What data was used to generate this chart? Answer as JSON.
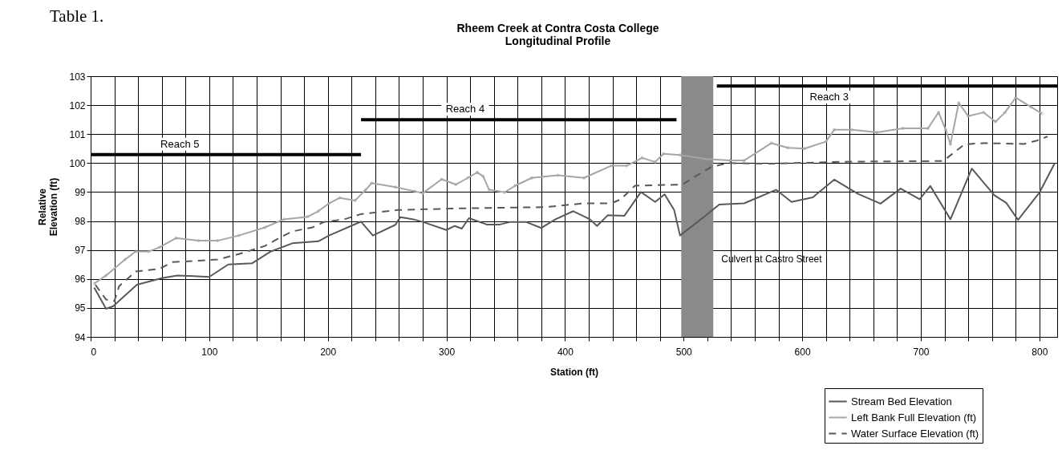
{
  "chart_data": {
    "type": "line",
    "title": "Rheem Creek at Contra Costa College\nLongitudinal Profile",
    "xlabel": "Station (ft)",
    "ylabel": "Relative Elevation (ft)",
    "annotations": [
      "Table 1."
    ],
    "xlim": [
      0,
      815
    ],
    "ylim": [
      94,
      103
    ],
    "xticks": [
      0,
      {
        "value": 20,
        "label": null
      },
      {
        "value": 40,
        "label": null
      },
      {
        "value": 60,
        "label": null
      },
      {
        "value": 80,
        "label": null
      },
      100,
      {
        "value": 120,
        "label": null
      },
      {
        "value": 140,
        "label": null
      },
      {
        "value": 160,
        "label": null
      },
      {
        "value": 180,
        "label": null
      },
      200,
      {
        "value": 220,
        "label": null
      },
      {
        "value": 240,
        "label": null
      },
      {
        "value": 260,
        "label": null
      },
      {
        "value": 280,
        "label": null
      },
      300,
      {
        "value": 320,
        "label": null
      },
      {
        "value": 340,
        "label": null
      },
      {
        "value": 360,
        "label": null
      },
      {
        "value": 380,
        "label": null
      },
      400,
      {
        "value": 420,
        "label": null
      },
      {
        "value": 440,
        "label": null
      },
      {
        "value": 460,
        "label": null
      },
      {
        "value": 480,
        "label": null
      },
      500,
      {
        "value": 520,
        "label": null
      },
      {
        "value": 540,
        "label": null
      },
      {
        "value": 560,
        "label": null
      },
      {
        "value": 580,
        "label": null
      },
      600,
      {
        "value": 620,
        "label": null
      },
      {
        "value": 640,
        "label": null
      },
      {
        "value": 660,
        "label": null
      },
      {
        "value": 680,
        "label": null
      },
      700,
      {
        "value": 720,
        "label": null
      },
      {
        "value": 740,
        "label": null
      },
      {
        "value": 760,
        "label": null
      },
      {
        "value": 780,
        "label": null
      },
      800
    ],
    "yticks": [
      94,
      95,
      96,
      97,
      98,
      99,
      100,
      101,
      102,
      103
    ],
    "grid": true,
    "legend": "bottom right",
    "bands": [
      {
        "axis": "x",
        "from": 498,
        "to": 525,
        "label": "Culvert at Castro Street",
        "color": "#8a8a8a"
      }
    ],
    "series": [
      {
        "name": "Stream Bed Elevation",
        "color": "#595959",
        "line_style": "solid",
        "x": [
          3,
          13,
          19,
          39,
          60,
          73,
          87,
          100,
          116,
          136,
          152,
          170,
          192,
          201,
          228,
          238,
          257,
          261,
          272,
          280,
          300,
          307,
          313,
          319,
          334,
          345,
          354,
          367,
          380,
          392,
          407,
          421,
          427,
          436,
          450,
          464,
          476,
          484,
          492,
          497,
          519,
          530,
          551,
          578,
          591,
          609,
          627,
          647,
          666,
          683,
          699,
          708,
          725,
          743,
          762,
          772,
          782,
          800,
          813
        ],
        "values": [
          95.7,
          94.97,
          95.06,
          95.8,
          96.03,
          96.12,
          96.1,
          96.07,
          96.5,
          96.54,
          96.95,
          97.23,
          97.3,
          97.5,
          97.98,
          97.5,
          97.87,
          98.13,
          98.06,
          97.97,
          97.69,
          97.83,
          97.74,
          98.1,
          97.88,
          97.88,
          97.97,
          97.97,
          97.76,
          98.06,
          98.34,
          98.06,
          97.83,
          98.2,
          98.18,
          99.0,
          98.66,
          98.92,
          98.38,
          97.5,
          98.2,
          98.57,
          98.61,
          99.08,
          98.66,
          98.82,
          99.43,
          98.94,
          98.6,
          99.12,
          98.75,
          99.21,
          98.06,
          99.81,
          98.89,
          98.63,
          98.04,
          98.98,
          100.0
        ]
      },
      {
        "name": "Left Bank Full Elevation (ft)",
        "color": "#a6a6a6",
        "line_style": "solid",
        "marker": "circle",
        "x": [
          3,
          13,
          29,
          38,
          49,
          58,
          72,
          91,
          107,
          125,
          147,
          163,
          183,
          192,
          201,
          210,
          223,
          232,
          237,
          257,
          273,
          280,
          296,
          308,
          318,
          326,
          331,
          336,
          349,
          358,
          372,
          394,
          416,
          439,
          452,
          465,
          476,
          483,
          497,
          519,
          539,
          551,
          574,
          588,
          602,
          620,
          627,
          642,
          663,
          685,
          706,
          715,
          721,
          725,
          732,
          740,
          753,
          763,
          771,
          780,
          793,
          802
        ],
        "values": [
          95.84,
          96.12,
          96.67,
          96.95,
          96.95,
          97.09,
          97.41,
          97.32,
          97.32,
          97.5,
          97.78,
          98.06,
          98.15,
          98.34,
          98.61,
          98.8,
          98.71,
          99.08,
          99.31,
          99.17,
          99.03,
          98.96,
          99.44,
          99.26,
          99.49,
          99.68,
          99.54,
          99.08,
          98.99,
          99.22,
          99.49,
          99.58,
          99.49,
          99.91,
          99.91,
          100.18,
          100.04,
          100.32,
          100.28,
          100.14,
          100.09,
          100.09,
          100.69,
          100.53,
          100.5,
          100.74,
          101.15,
          101.15,
          101.06,
          101.2,
          101.2,
          101.75,
          101.15,
          100.65,
          102.08,
          101.62,
          101.75,
          101.43,
          101.75,
          102.26,
          101.94,
          101.71
        ]
      },
      {
        "name": "Water Surface Elevation (ft)",
        "color": "#595959",
        "line_style": "dashed",
        "x": [
          4,
          13,
          20,
          24,
          38,
          58,
          69,
          91,
          107,
          125,
          147,
          161,
          170,
          187,
          197,
          214,
          228,
          259,
          304,
          349,
          383,
          416,
          439,
          447,
          459,
          499,
          510,
          523,
          537,
          573,
          640,
          717,
          721,
          737,
          753,
          787,
          798,
          807
        ],
        "values": [
          95.8,
          95.29,
          95.24,
          95.75,
          96.26,
          96.35,
          96.58,
          96.63,
          96.67,
          96.86,
          97.14,
          97.46,
          97.64,
          97.78,
          97.97,
          98.06,
          98.24,
          98.38,
          98.43,
          98.46,
          98.48,
          98.61,
          98.61,
          98.75,
          99.22,
          99.26,
          99.54,
          99.86,
          100.0,
          99.98,
          100.05,
          100.07,
          100.14,
          100.65,
          100.69,
          100.66,
          100.78,
          100.92
        ]
      },
      {
        "name": "Reach 5",
        "color": "#000000",
        "line_style": "solid",
        "x": [
          0,
          228
        ],
        "values": [
          100.29,
          100.29
        ]
      },
      {
        "name": "Reach 4",
        "color": "#000000",
        "line_style": "solid",
        "x": [
          228,
          494
        ],
        "values": [
          101.5,
          101.5
        ]
      },
      {
        "name": "Reach 3",
        "color": "#000000",
        "line_style": "solid",
        "x": [
          528,
          815
        ],
        "values": [
          102.66,
          102.66
        ]
      }
    ]
  }
}
